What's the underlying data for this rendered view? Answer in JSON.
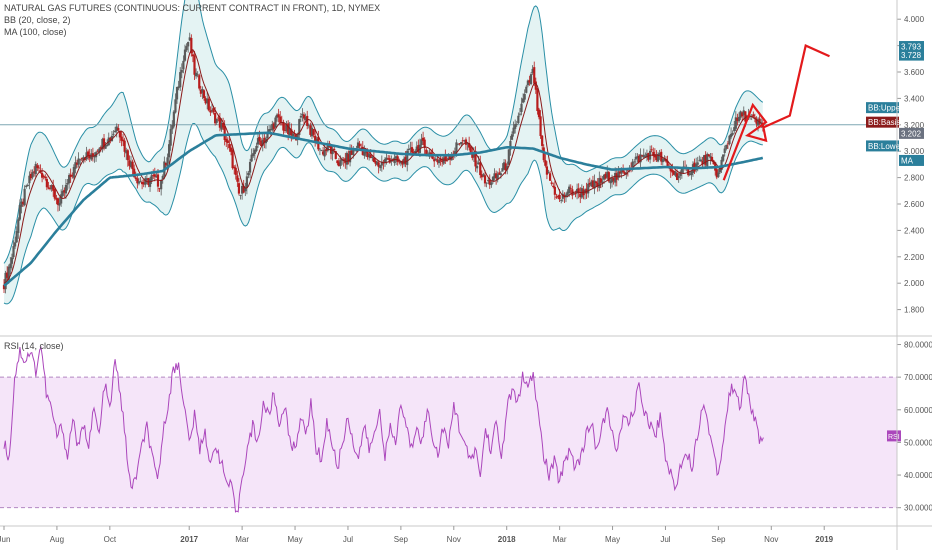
{
  "header": {
    "title": "NATURAL GAS FUTURES (CONTINUOUS: CURRENT CONTRACT IN FRONT), 1D, NYMEX",
    "bb_legend": "BB (20, close, 2)",
    "ma_legend": "MA (100, close)",
    "rsi_legend": "RSI (14, close)"
  },
  "colors": {
    "background": "#ffffff",
    "candle_up": "#5a5a5a",
    "candle_down": "#b71c1c",
    "bb_line": "#2a8fa6",
    "bb_fill": "#dff1f1",
    "bb_basis": "#8b1a1a",
    "ma": "#2b7f9b",
    "drawing": "#e31a1c",
    "rsi_line": "#ab47bc",
    "rsi_band": "#f1dcf7",
    "crosshair": "#7fa7b3"
  },
  "chart_data": [
    {
      "type": "candlestick",
      "title": "NATURAL GAS FUTURES (CONTINUOUS: CURRENT CONTRACT IN FRONT), 1D, NYMEX",
      "ylim": [
        1.6,
        4.1
      ],
      "y_ticks": [
        "4.000",
        "3.800",
        "3.600",
        "3.400",
        "3.200",
        "3.000",
        "2.800",
        "2.600",
        "2.400",
        "2.200",
        "2.000",
        "1.800"
      ],
      "y_tick_values": [
        4.0,
        3.8,
        3.6,
        3.4,
        3.2,
        3.0,
        2.8,
        2.6,
        2.4,
        2.2,
        2.0,
        1.8
      ],
      "x_labels": [
        "Jun",
        "Aug",
        "Oct",
        "2017",
        "Mar",
        "May",
        "Jul",
        "Sep",
        "Nov",
        "2018",
        "Mar",
        "May",
        "Jul",
        "Sep",
        "Nov",
        "2019"
      ],
      "x_label_months": [
        0,
        2,
        4,
        7,
        9,
        11,
        13,
        15,
        17,
        19,
        21,
        23,
        25,
        27,
        29,
        31
      ],
      "x_range_months": [
        0,
        33.6
      ],
      "close_path": [
        [
          0,
          2.0
        ],
        [
          0.3,
          2.2
        ],
        [
          0.6,
          2.55
        ],
        [
          0.9,
          2.75
        ],
        [
          1.2,
          2.88
        ],
        [
          1.5,
          2.82
        ],
        [
          1.8,
          2.7
        ],
        [
          2.1,
          2.6
        ],
        [
          2.5,
          2.8
        ],
        [
          2.9,
          2.98
        ],
        [
          3.3,
          2.95
        ],
        [
          3.6,
          3.05
        ],
        [
          4.0,
          3.1
        ],
        [
          4.3,
          3.2
        ],
        [
          4.6,
          3.0
        ],
        [
          5.0,
          2.8
        ],
        [
          5.3,
          2.75
        ],
        [
          5.6,
          2.8
        ],
        [
          5.9,
          2.75
        ],
        [
          6.2,
          3.0
        ],
        [
          6.5,
          3.4
        ],
        [
          6.8,
          3.75
        ],
        [
          7.0,
          3.85
        ],
        [
          7.2,
          3.6
        ],
        [
          7.5,
          3.45
        ],
        [
          7.8,
          3.3
        ],
        [
          8.2,
          3.2
        ],
        [
          8.6,
          2.95
        ],
        [
          8.9,
          2.65
        ],
        [
          9.2,
          2.8
        ],
        [
          9.5,
          3.05
        ],
        [
          9.9,
          3.1
        ],
        [
          10.3,
          3.25
        ],
        [
          10.7,
          3.15
        ],
        [
          11.0,
          3.1
        ],
        [
          11.3,
          3.3
        ],
        [
          11.6,
          3.15
        ],
        [
          12.0,
          3.0
        ],
        [
          12.3,
          3.02
        ],
        [
          12.7,
          2.9
        ],
        [
          13.0,
          2.95
        ],
        [
          13.4,
          3.05
        ],
        [
          13.8,
          2.95
        ],
        [
          14.2,
          2.9
        ],
        [
          14.6,
          2.95
        ],
        [
          15.0,
          2.9
        ],
        [
          15.4,
          3.0
        ],
        [
          15.8,
          3.05
        ],
        [
          16.2,
          2.95
        ],
        [
          16.6,
          2.92
        ],
        [
          17.0,
          3.0
        ],
        [
          17.3,
          3.1
        ],
        [
          17.6,
          3.0
        ],
        [
          17.9,
          2.9
        ],
        [
          18.2,
          2.75
        ],
        [
          18.6,
          2.8
        ],
        [
          19.0,
          2.9
        ],
        [
          19.2,
          3.1
        ],
        [
          19.5,
          3.3
        ],
        [
          19.8,
          3.5
        ],
        [
          20.0,
          3.6
        ],
        [
          20.2,
          3.25
        ],
        [
          20.4,
          2.9
        ],
        [
          20.7,
          2.75
        ],
        [
          21.0,
          2.62
        ],
        [
          21.3,
          2.7
        ],
        [
          21.7,
          2.68
        ],
        [
          22.1,
          2.72
        ],
        [
          22.5,
          2.76
        ],
        [
          22.9,
          2.82
        ],
        [
          23.2,
          2.8
        ],
        [
          23.6,
          2.88
        ],
        [
          24.0,
          2.95
        ],
        [
          24.4,
          2.98
        ],
        [
          24.8,
          2.95
        ],
        [
          25.1,
          2.88
        ],
        [
          25.4,
          2.82
        ],
        [
          25.8,
          2.85
        ],
        [
          26.2,
          2.9
        ],
        [
          26.6,
          2.95
        ],
        [
          27.0,
          2.82
        ],
        [
          27.3,
          3.05
        ],
        [
          27.6,
          3.2
        ],
        [
          27.9,
          3.28
        ],
        [
          28.2,
          3.25
        ],
        [
          28.5,
          3.2
        ],
        [
          28.7,
          3.202
        ]
      ],
      "ma_path": [
        [
          0,
          1.98
        ],
        [
          1,
          2.15
        ],
        [
          2,
          2.4
        ],
        [
          3,
          2.63
        ],
        [
          4,
          2.8
        ],
        [
          5,
          2.82
        ],
        [
          6,
          2.85
        ],
        [
          7,
          3.0
        ],
        [
          8,
          3.12
        ],
        [
          9,
          3.13
        ],
        [
          10,
          3.14
        ],
        [
          11,
          3.1
        ],
        [
          12,
          3.06
        ],
        [
          13,
          3.02
        ],
        [
          14,
          3.0
        ],
        [
          15,
          2.98
        ],
        [
          16,
          2.97
        ],
        [
          17,
          2.97
        ],
        [
          18,
          2.99
        ],
        [
          19,
          3.03
        ],
        [
          20,
          3.02
        ],
        [
          21,
          2.95
        ],
        [
          22,
          2.9
        ],
        [
          23,
          2.86
        ],
        [
          24,
          2.87
        ],
        [
          25,
          2.88
        ],
        [
          26,
          2.87
        ],
        [
          27,
          2.88
        ],
        [
          28,
          2.92
        ],
        [
          28.7,
          2.95
        ]
      ],
      "bb_width_path": [
        [
          0,
          0.15
        ],
        [
          1,
          0.35
        ],
        [
          1.5,
          0.28
        ],
        [
          2,
          0.25
        ],
        [
          3,
          0.2
        ],
        [
          4,
          0.25
        ],
        [
          4.5,
          0.3
        ],
        [
          5,
          0.18
        ],
        [
          5.5,
          0.15
        ],
        [
          6,
          0.25
        ],
        [
          6.7,
          0.55
        ],
        [
          7,
          0.6
        ],
        [
          7.5,
          0.45
        ],
        [
          8,
          0.35
        ],
        [
          8.5,
          0.4
        ],
        [
          9,
          0.3
        ],
        [
          10,
          0.2
        ],
        [
          11,
          0.18
        ],
        [
          12,
          0.17
        ],
        [
          13,
          0.15
        ],
        [
          14,
          0.14
        ],
        [
          15,
          0.14
        ],
        [
          16,
          0.15
        ],
        [
          17,
          0.2
        ],
        [
          18,
          0.22
        ],
        [
          19,
          0.25
        ],
        [
          19.8,
          0.55
        ],
        [
          20.2,
          0.6
        ],
        [
          20.5,
          0.55
        ],
        [
          21,
          0.28
        ],
        [
          22,
          0.15
        ],
        [
          23,
          0.14
        ],
        [
          24,
          0.14
        ],
        [
          25,
          0.15
        ],
        [
          26,
          0.15
        ],
        [
          27,
          0.18
        ],
        [
          28,
          0.2
        ],
        [
          28.7,
          0.16
        ]
      ],
      "price_tags": [
        {
          "label": "3.793",
          "value": 3.793
        },
        {
          "label": "3.728",
          "value": 3.728
        },
        {
          "label": "BB:Upper",
          "value": 3.33
        },
        {
          "label": "BB:Basis",
          "value": 3.22
        },
        {
          "label": "3.202",
          "value": 3.135
        },
        {
          "label": "BB:Lower",
          "value": 3.04
        },
        {
          "label": "MA",
          "value": 2.93
        }
      ],
      "drawing_path": [
        [
          27.2,
          2.78
        ],
        [
          28.3,
          3.35
        ],
        [
          28.8,
          3.22
        ],
        [
          28.1,
          3.12
        ],
        [
          28.8,
          3.08
        ],
        [
          28.7,
          3.18
        ],
        [
          29.7,
          3.27
        ],
        [
          30.3,
          3.8
        ],
        [
          31.2,
          3.72
        ]
      ],
      "crosshair_value": 3.2
    },
    {
      "type": "line",
      "title": "RSI (14, close)",
      "ylim": [
        25,
        82
      ],
      "y_ticks": [
        "80.0000",
        "70.0000",
        "60.0000",
        "50.0000",
        "40.0000",
        "30.0000"
      ],
      "y_tick_values": [
        80,
        70,
        60,
        50,
        40,
        30
      ],
      "band": [
        30,
        70
      ],
      "last_label": "RSI",
      "last_value": 52,
      "rsi_path": [
        [
          0,
          50
        ],
        [
          0.2,
          45
        ],
        [
          0.4,
          70
        ],
        [
          0.6,
          78
        ],
        [
          0.8,
          75
        ],
        [
          1.0,
          78
        ],
        [
          1.2,
          72
        ],
        [
          1.4,
          80
        ],
        [
          1.6,
          65
        ],
        [
          1.8,
          60
        ],
        [
          2.0,
          52
        ],
        [
          2.2,
          55
        ],
        [
          2.4,
          45
        ],
        [
          2.6,
          58
        ],
        [
          2.8,
          48
        ],
        [
          3.0,
          55
        ],
        [
          3.2,
          50
        ],
        [
          3.4,
          60
        ],
        [
          3.6,
          52
        ],
        [
          3.8,
          68
        ],
        [
          4.0,
          60
        ],
        [
          4.2,
          75
        ],
        [
          4.4,
          65
        ],
        [
          4.6,
          50
        ],
        [
          4.8,
          35
        ],
        [
          5.0,
          40
        ],
        [
          5.2,
          48
        ],
        [
          5.4,
          55
        ],
        [
          5.6,
          45
        ],
        [
          5.8,
          38
        ],
        [
          6.0,
          52
        ],
        [
          6.2,
          62
        ],
        [
          6.4,
          72
        ],
        [
          6.6,
          74
        ],
        [
          6.8,
          62
        ],
        [
          7.0,
          50
        ],
        [
          7.2,
          58
        ],
        [
          7.4,
          48
        ],
        [
          7.6,
          54
        ],
        [
          7.8,
          42
        ],
        [
          8.0,
          50
        ],
        [
          8.2,
          44
        ],
        [
          8.4,
          38
        ],
        [
          8.6,
          36
        ],
        [
          8.8,
          27
        ],
        [
          9.0,
          40
        ],
        [
          9.2,
          48
        ],
        [
          9.4,
          55
        ],
        [
          9.6,
          50
        ],
        [
          9.8,
          62
        ],
        [
          10.0,
          58
        ],
        [
          10.2,
          65
        ],
        [
          10.4,
          55
        ],
        [
          10.6,
          62
        ],
        [
          10.8,
          50
        ],
        [
          11.0,
          48
        ],
        [
          11.2,
          58
        ],
        [
          11.4,
          52
        ],
        [
          11.6,
          62
        ],
        [
          11.8,
          48
        ],
        [
          12.0,
          45
        ],
        [
          12.2,
          56
        ],
        [
          12.4,
          50
        ],
        [
          12.6,
          42
        ],
        [
          12.8,
          50
        ],
        [
          13.0,
          58
        ],
        [
          13.2,
          50
        ],
        [
          13.4,
          45
        ],
        [
          13.6,
          55
        ],
        [
          13.8,
          48
        ],
        [
          14.0,
          52
        ],
        [
          14.2,
          60
        ],
        [
          14.4,
          46
        ],
        [
          14.6,
          54
        ],
        [
          14.8,
          50
        ],
        [
          15.0,
          62
        ],
        [
          15.2,
          55
        ],
        [
          15.4,
          48
        ],
        [
          15.6,
          56
        ],
        [
          15.8,
          50
        ],
        [
          16.0,
          60
        ],
        [
          16.2,
          52
        ],
        [
          16.4,
          46
        ],
        [
          16.6,
          55
        ],
        [
          16.8,
          48
        ],
        [
          17.0,
          62
        ],
        [
          17.2,
          55
        ],
        [
          17.4,
          50
        ],
        [
          17.6,
          44
        ],
        [
          17.8,
          48
        ],
        [
          18.0,
          40
        ],
        [
          18.2,
          54
        ],
        [
          18.4,
          48
        ],
        [
          18.6,
          56
        ],
        [
          18.8,
          45
        ],
        [
          19.0,
          60
        ],
        [
          19.2,
          66
        ],
        [
          19.4,
          62
        ],
        [
          19.6,
          70
        ],
        [
          19.8,
          66
        ],
        [
          20.0,
          71
        ],
        [
          20.2,
          58
        ],
        [
          20.4,
          46
        ],
        [
          20.6,
          40
        ],
        [
          20.8,
          44
        ],
        [
          21.0,
          38
        ],
        [
          21.2,
          45
        ],
        [
          21.4,
          48
        ],
        [
          21.6,
          42
        ],
        [
          21.8,
          46
        ],
        [
          22.0,
          52
        ],
        [
          22.2,
          56
        ],
        [
          22.4,
          48
        ],
        [
          22.6,
          54
        ],
        [
          22.8,
          60
        ],
        [
          23.0,
          52
        ],
        [
          23.2,
          48
        ],
        [
          23.4,
          58
        ],
        [
          23.6,
          55
        ],
        [
          23.8,
          60
        ],
        [
          24.0,
          67
        ],
        [
          24.2,
          60
        ],
        [
          24.4,
          56
        ],
        [
          24.6,
          52
        ],
        [
          24.8,
          58
        ],
        [
          25.0,
          46
        ],
        [
          25.2,
          40
        ],
        [
          25.4,
          36
        ],
        [
          25.6,
          44
        ],
        [
          25.8,
          48
        ],
        [
          26.0,
          42
        ],
        [
          26.2,
          52
        ],
        [
          26.4,
          62
        ],
        [
          26.6,
          56
        ],
        [
          26.8,
          48
        ],
        [
          27.0,
          40
        ],
        [
          27.2,
          52
        ],
        [
          27.4,
          64
        ],
        [
          27.6,
          68
        ],
        [
          27.8,
          60
        ],
        [
          28.0,
          70
        ],
        [
          28.2,
          62
        ],
        [
          28.4,
          56
        ],
        [
          28.6,
          50
        ],
        [
          28.7,
          53
        ]
      ]
    }
  ]
}
